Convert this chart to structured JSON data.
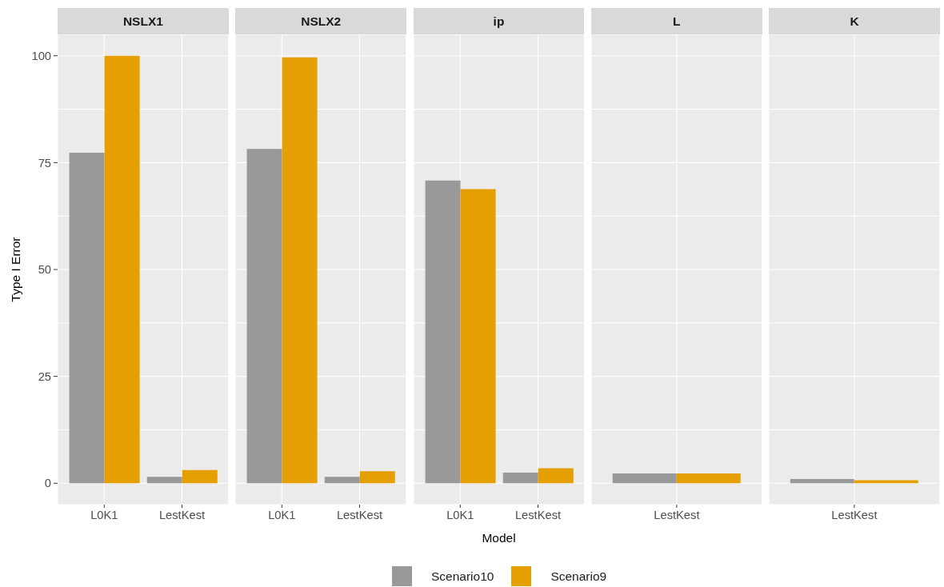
{
  "chart_data": [
    {
      "type": "bar",
      "title": "NSLX1",
      "ylabel": "Type I Error",
      "categories": [
        "L0K1",
        "LestKest"
      ],
      "series": [
        {
          "color": "#999999",
          "values": [
            77.3,
            1.5
          ]
        },
        {
          "color": "#e69f00",
          "values": [
            100,
            3.1
          ]
        }
      ],
      "ylim": [
        -5,
        105
      ],
      "yticks": [
        0,
        {
          "value": 12.5,
          "label": null
        },
        25,
        {
          "value": 37.5,
          "label": null
        },
        50,
        {
          "value": 62.5,
          "label": null
        },
        75,
        {
          "value": 87.5,
          "label": null
        },
        100
      ],
      "grid": true
    },
    {
      "type": "bar",
      "title": "NSLX2",
      "categories": [
        "L0K1",
        "LestKest"
      ],
      "series": [
        {
          "color": "#999999",
          "values": [
            78.2,
            1.5
          ]
        },
        {
          "color": "#e69f00",
          "values": [
            99.6,
            2.8
          ]
        }
      ],
      "ylim": [
        -5,
        105
      ],
      "yticks": [
        0,
        {
          "value": 12.5,
          "label": null
        },
        25,
        {
          "value": 37.5,
          "label": null
        },
        50,
        {
          "value": 62.5,
          "label": null
        },
        75,
        {
          "value": 87.5,
          "label": null
        },
        100
      ],
      "grid": true,
      "tick_labels": "x"
    },
    {
      "type": "bar",
      "title": "ip",
      "xlabel": "Model",
      "categories": [
        "L0K1",
        "LestKest"
      ],
      "series": [
        {
          "name": "Scenario10",
          "color": "#999999",
          "values": [
            70.8,
            2.5
          ]
        },
        {
          "name": "Scenario9",
          "color": "#e69f00",
          "values": [
            68.8,
            3.5
          ]
        }
      ],
      "ylim": [
        -5,
        105
      ],
      "yticks": [
        0,
        {
          "value": 12.5,
          "label": null
        },
        25,
        {
          "value": 37.5,
          "label": null
        },
        50,
        {
          "value": 62.5,
          "label": null
        },
        75,
        {
          "value": 87.5,
          "label": null
        },
        100
      ],
      "grid": true,
      "tick_labels": "x",
      "legend": "bottom"
    },
    {
      "type": "bar",
      "title": "L",
      "categories": [
        "LestKest"
      ],
      "series": [
        {
          "color": "#999999",
          "values": [
            2.3
          ]
        },
        {
          "color": "#e69f00",
          "values": [
            2.3
          ]
        }
      ],
      "ylim": [
        -5,
        105
      ],
      "yticks": [
        0,
        {
          "value": 12.5,
          "label": null
        },
        25,
        {
          "value": 37.5,
          "label": null
        },
        50,
        {
          "value": 62.5,
          "label": null
        },
        75,
        {
          "value": 87.5,
          "label": null
        },
        100
      ],
      "grid": true,
      "tick_labels": "x"
    },
    {
      "type": "bar",
      "title": "K",
      "categories": [
        "LestKest"
      ],
      "series": [
        {
          "color": "#999999",
          "values": [
            1.0
          ]
        },
        {
          "color": "#e69f00",
          "values": [
            0.7
          ]
        }
      ],
      "ylim": [
        -5,
        105
      ],
      "yticks": [
        0,
        {
          "value": 12.5,
          "label": null
        },
        25,
        {
          "value": 37.5,
          "label": null
        },
        50,
        {
          "value": 62.5,
          "label": null
        },
        75,
        {
          "value": 87.5,
          "label": null
        },
        100
      ],
      "grid": true,
      "tick_labels": "x"
    }
  ]
}
